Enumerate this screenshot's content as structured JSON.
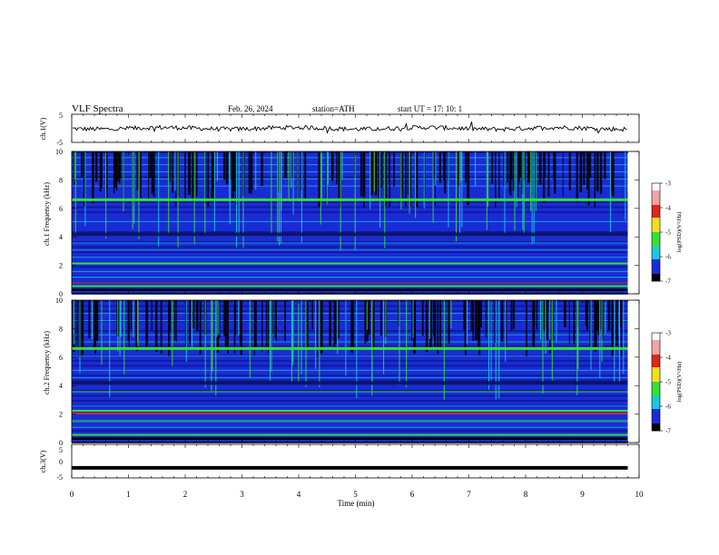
{
  "header": {
    "title": "VLF  Spectra",
    "date": "Feb. 26, 2024",
    "station": "station=ATH",
    "start_ut": "start  UT  =    17: 10: 1"
  },
  "colors": {
    "spec_black": "#000000",
    "spec_blue": "#1a2bd6",
    "spec_cyan": "#18c8e0",
    "spec_green": "#34e03a",
    "spec_red": "#e0261a",
    "line_black": "#000000"
  },
  "chart_data": [
    {
      "type": "line",
      "name": "ch1-waveform",
      "ylabel": "ch.1(V)",
      "ylim": [
        -5,
        5
      ],
      "y_ticks": [
        "5",
        "-5"
      ],
      "x_range_min": [
        0,
        10
      ],
      "data_end_min": 9.8,
      "level_v": 0,
      "grid": false
    },
    {
      "type": "heatmap",
      "name": "ch1-spectrogram",
      "ylabel": "ch.1 Frequency (kHz)",
      "ylim": [
        0,
        10
      ],
      "y_ticks": [
        "0",
        "2",
        "4",
        "6",
        "8",
        "10"
      ],
      "x_range_min": [
        0,
        10
      ],
      "data_end_min": 9.8,
      "colorbar": {
        "label": "log(PSD)(V²/Hz)",
        "range": [
          -7,
          -3
        ],
        "ticks": [
          "-3",
          "-4",
          "-5",
          "-6",
          "-7"
        ]
      }
    },
    {
      "type": "heatmap",
      "name": "ch2-spectrogram",
      "ylabel": "ch.2 Frequency (kHz)",
      "ylim": [
        0,
        10
      ],
      "y_ticks": [
        "0",
        "2",
        "4",
        "6",
        "8",
        "10"
      ],
      "x_range_min": [
        0,
        10
      ],
      "data_end_min": 9.8,
      "colorbar": {
        "label": "log(PSD)(V²/Hz)",
        "range": [
          -7,
          -3
        ],
        "ticks": [
          "-3",
          "-4",
          "-5",
          "-6",
          "-7"
        ]
      }
    },
    {
      "type": "line",
      "name": "ch3-waveform",
      "ylabel": "ch.3(V)",
      "ylim": [
        -5,
        5
      ],
      "y_ticks": [
        "5",
        "0",
        "-5"
      ],
      "x_range_min": [
        0,
        10
      ],
      "data_end_min": 9.8,
      "level_v": -2,
      "grid": false
    }
  ],
  "x_axis": {
    "label": "Time  (min)",
    "ticks": [
      "0",
      "1",
      "2",
      "3",
      "4",
      "5",
      "6",
      "7",
      "8",
      "9",
      "10"
    ]
  }
}
